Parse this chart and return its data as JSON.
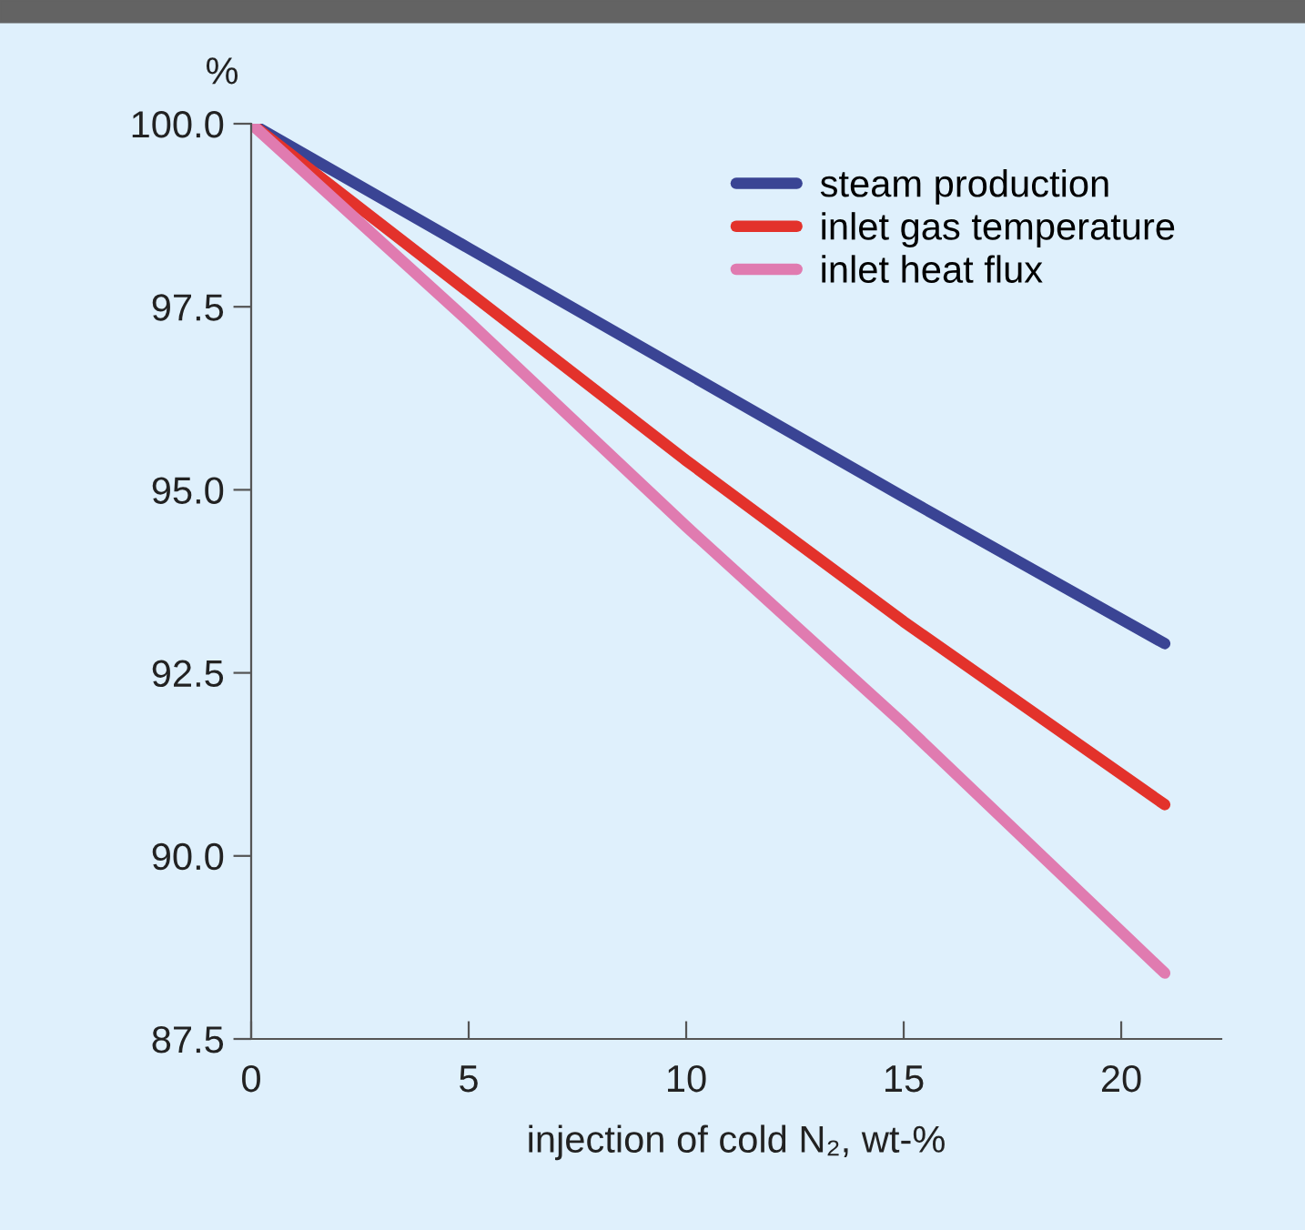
{
  "chart_data": {
    "type": "line",
    "ylabel": "%",
    "xlabel": "injection of cold N₂, wt-%",
    "x": [
      0,
      5,
      10,
      15,
      21
    ],
    "series": [
      {
        "name": "steam production",
        "color": "#3a4494",
        "values": [
          100,
          98.3,
          96.6,
          94.9,
          92.9
        ]
      },
      {
        "name": "inlet gas temperature",
        "color": "#e3322b",
        "values": [
          100,
          97.7,
          95.4,
          93.2,
          90.7
        ]
      },
      {
        "name": "inlet heat flux",
        "color": "#e07bb0",
        "values": [
          100,
          97.3,
          94.5,
          91.8,
          88.4
        ]
      }
    ],
    "xlim": [
      0,
      22.3
    ],
    "ylim": [
      87.5,
      100
    ],
    "xticks": [
      0,
      5,
      10,
      15,
      20
    ],
    "yticks": [
      {
        "value": 87.5,
        "label": "87.5"
      },
      {
        "value": 90,
        "label": "90.0"
      },
      {
        "value": 92.5,
        "label": "92.5"
      },
      {
        "value": 95,
        "label": "95.0"
      },
      {
        "value": 97.5,
        "label": "97.5"
      },
      {
        "value": 100,
        "label": "100.0"
      }
    ],
    "grid": false,
    "legend": "top right",
    "marker": "none",
    "line_style": "solid"
  }
}
